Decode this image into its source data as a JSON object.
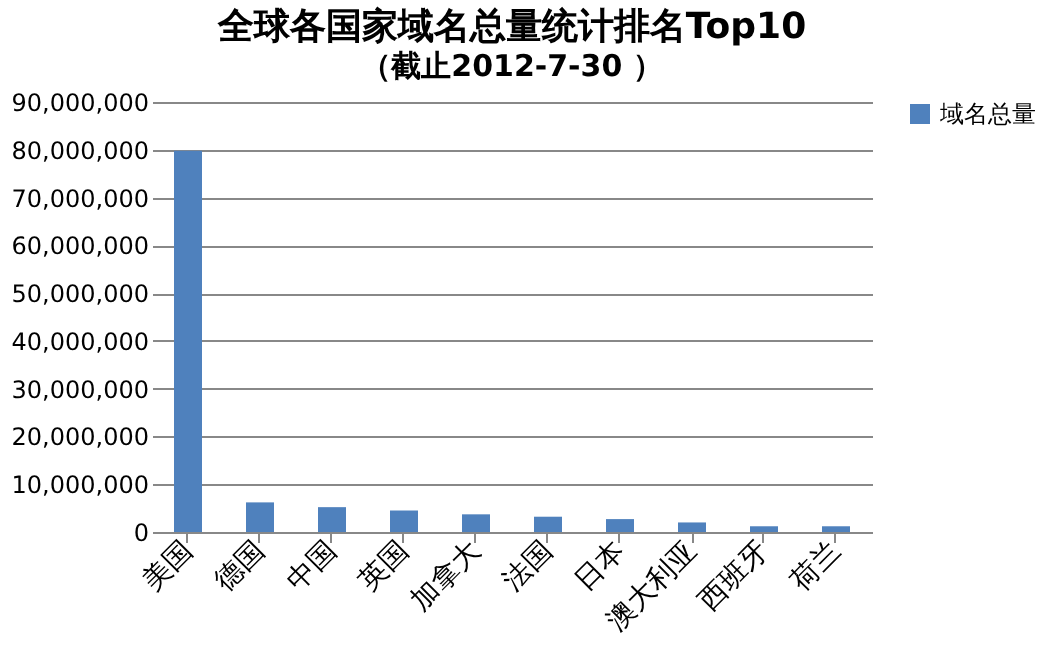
{
  "chart_data": {
    "type": "bar",
    "title": "全球各国家域名总量统计排名Top10",
    "subtitle": "（截止2012-7-30 ）",
    "categories": [
      "美国",
      "德国",
      "中国",
      "英国",
      "加拿大",
      "法国",
      "日本",
      "澳大利亚",
      "西班牙",
      "荷兰"
    ],
    "series": [
      {
        "name": "域名总量",
        "color": "#4f81bd",
        "values": [
          79800000,
          6200000,
          5200000,
          4500000,
          3700000,
          3200000,
          2700000,
          2000000,
          1200000,
          1200000
        ]
      }
    ],
    "ylim": [
      0,
      90000000
    ],
    "yticks": [
      0,
      {
        "value": 10000000,
        "label": "10,000,000"
      },
      {
        "value": 20000000,
        "label": "20,000,000"
      },
      {
        "value": 30000000,
        "label": "30,000,000"
      },
      {
        "value": 40000000,
        "label": "40,000,000"
      },
      {
        "value": 50000000,
        "label": "50,000,000"
      },
      {
        "value": 60000000,
        "label": "60,000,000"
      },
      {
        "value": 70000000,
        "label": "70,000,000"
      },
      {
        "value": 80000000,
        "label": "80,000,000"
      },
      {
        "value": 90000000,
        "label": "90,000,000"
      }
    ],
    "grid": "y",
    "legend": "right"
  }
}
